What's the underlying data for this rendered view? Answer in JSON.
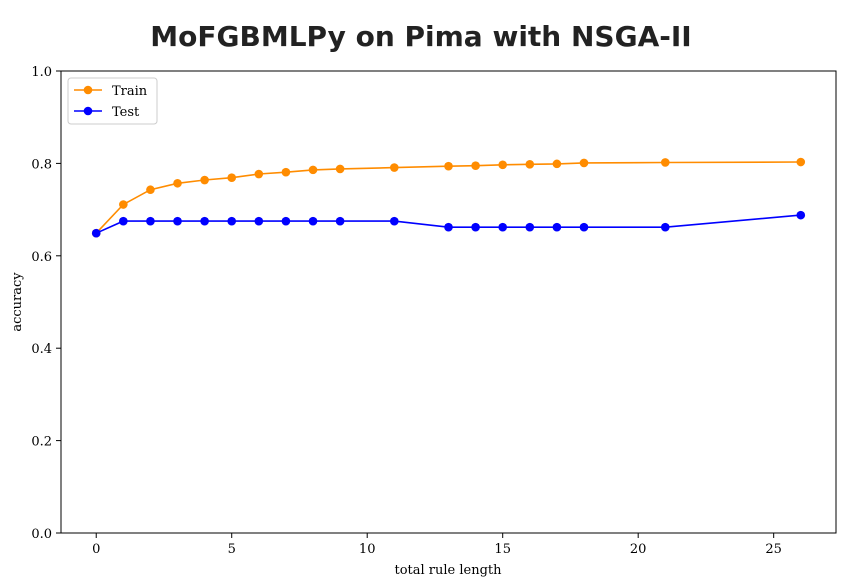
{
  "chart_data": {
    "type": "line",
    "title": "MoFGBMLPy on Pima with NSGA-II",
    "xlabel": "total rule length",
    "ylabel": "accuracy",
    "xlim": [
      -1.3,
      27.3
    ],
    "ylim": [
      0,
      1
    ],
    "xticks": [
      0,
      5,
      10,
      15,
      20,
      25
    ],
    "yticks": [
      0.0,
      0.2,
      0.4,
      0.6,
      0.8,
      1.0
    ],
    "grid": false,
    "legend_position": "top-left",
    "series": [
      {
        "name": "Train",
        "color": "#ff8c00",
        "x": [
          0,
          1,
          2,
          3,
          4,
          5,
          6,
          7,
          8,
          9,
          11,
          13,
          14,
          15,
          16,
          17,
          18,
          21,
          26
        ],
        "y": [
          0.649,
          0.711,
          0.743,
          0.757,
          0.764,
          0.769,
          0.777,
          0.781,
          0.786,
          0.788,
          0.791,
          0.794,
          0.795,
          0.797,
          0.798,
          0.799,
          0.801,
          0.802,
          0.803
        ]
      },
      {
        "name": "Test",
        "color": "#0000ff",
        "x": [
          0,
          1,
          2,
          3,
          4,
          5,
          6,
          7,
          8,
          9,
          11,
          13,
          14,
          15,
          16,
          17,
          18,
          21,
          26
        ],
        "y": [
          0.649,
          0.675,
          0.675,
          0.675,
          0.675,
          0.675,
          0.675,
          0.675,
          0.675,
          0.675,
          0.675,
          0.662,
          0.662,
          0.662,
          0.662,
          0.662,
          0.662,
          0.662,
          0.688
        ]
      }
    ]
  }
}
